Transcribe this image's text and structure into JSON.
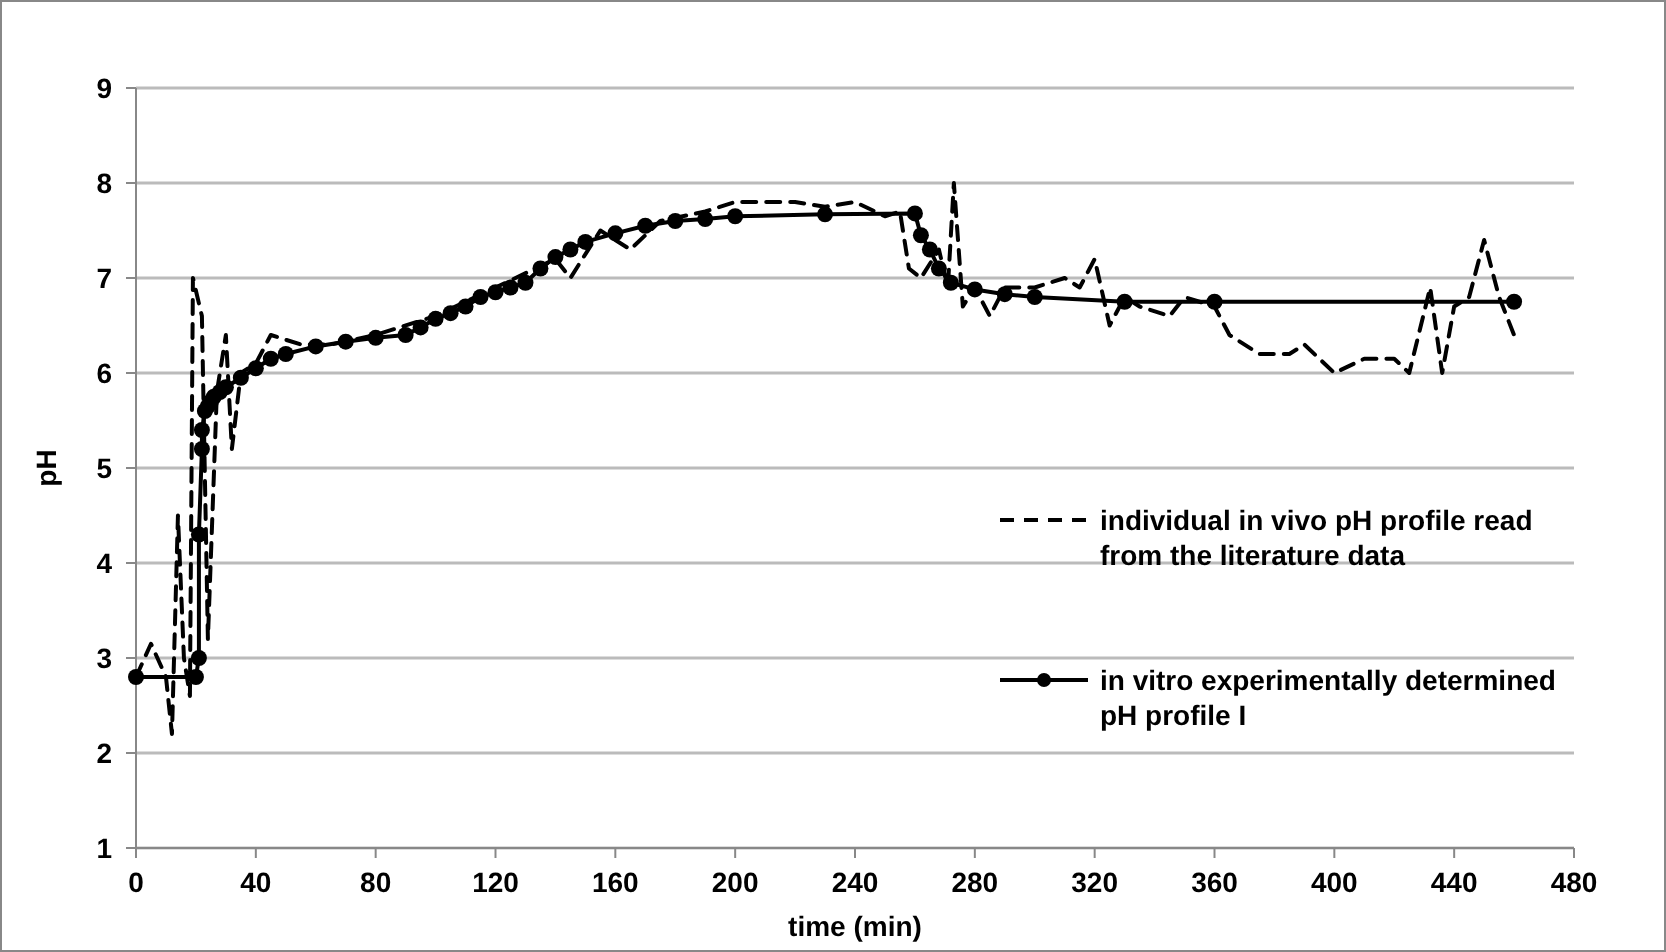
{
  "chart_data": {
    "type": "line",
    "xlabel": "time (min)",
    "ylabel": "pH",
    "xlim": [
      0,
      480
    ],
    "xticks": [
      0,
      40,
      80,
      120,
      160,
      200,
      240,
      280,
      320,
      360,
      400,
      440,
      480
    ],
    "ylim": [
      1,
      9
    ],
    "yticks": [
      1,
      2,
      3,
      4,
      5,
      6,
      7,
      8,
      9
    ],
    "grid": "y",
    "legend": "right",
    "series": [
      {
        "name": "individual in vivo pH profile read from the literature data",
        "color": "#000000",
        "line_style": "dashed",
        "marker": "none",
        "x": [
          0,
          5,
          10,
          12,
          14,
          16,
          18,
          19,
          22,
          24,
          27,
          30,
          32,
          35,
          40,
          45,
          55,
          65,
          80,
          100,
          120,
          140,
          145,
          155,
          165,
          175,
          190,
          200,
          210,
          220,
          230,
          240,
          250,
          255,
          258,
          262,
          268,
          271,
          273,
          276,
          280,
          285,
          290,
          300,
          310,
          315,
          320,
          325,
          330,
          335,
          345,
          350,
          360,
          365,
          375,
          385,
          390,
          400,
          410,
          420,
          425,
          432,
          436,
          440,
          445,
          450,
          455,
          460
        ],
        "values": [
          2.8,
          3.15,
          2.8,
          2.2,
          4.5,
          3.0,
          2.6,
          7.0,
          6.6,
          3.2,
          5.8,
          6.4,
          5.2,
          6.0,
          6.1,
          6.4,
          6.3,
          6.3,
          6.4,
          6.6,
          6.9,
          7.2,
          7.0,
          7.5,
          7.3,
          7.6,
          7.7,
          7.8,
          7.8,
          7.8,
          7.75,
          7.8,
          7.65,
          7.7,
          7.1,
          7.0,
          7.3,
          6.9,
          8.0,
          6.7,
          6.9,
          6.6,
          6.9,
          6.9,
          7.0,
          6.9,
          7.2,
          6.5,
          6.8,
          6.7,
          6.6,
          6.8,
          6.7,
          6.4,
          6.2,
          6.2,
          6.3,
          6.0,
          6.15,
          6.15,
          6.0,
          6.9,
          6.0,
          6.7,
          6.8,
          7.4,
          6.8,
          6.4
        ]
      },
      {
        "name": "in vitro experimentally determined pH profile I",
        "color": "#000000",
        "line_style": "solid",
        "marker": "circle",
        "x": [
          0,
          20,
          21,
          21,
          22,
          22,
          23,
          24,
          25,
          26,
          28,
          30,
          35,
          40,
          45,
          50,
          60,
          70,
          80,
          90,
          95,
          100,
          105,
          110,
          115,
          120,
          125,
          130,
          135,
          140,
          145,
          150,
          160,
          170,
          180,
          190,
          200,
          230,
          260,
          262,
          265,
          268,
          272,
          280,
          290,
          300,
          330,
          360,
          460
        ],
        "values": [
          2.8,
          2.8,
          3.0,
          4.3,
          5.2,
          5.4,
          5.6,
          5.65,
          5.7,
          5.75,
          5.8,
          5.85,
          5.95,
          6.05,
          6.15,
          6.2,
          6.28,
          6.33,
          6.37,
          6.4,
          6.48,
          6.57,
          6.63,
          6.7,
          6.8,
          6.85,
          6.9,
          6.95,
          7.1,
          7.22,
          7.3,
          7.38,
          7.47,
          7.55,
          7.6,
          7.62,
          7.65,
          7.67,
          7.68,
          7.45,
          7.3,
          7.1,
          6.95,
          6.88,
          6.83,
          6.8,
          6.75,
          6.75,
          6.75
        ]
      }
    ]
  }
}
